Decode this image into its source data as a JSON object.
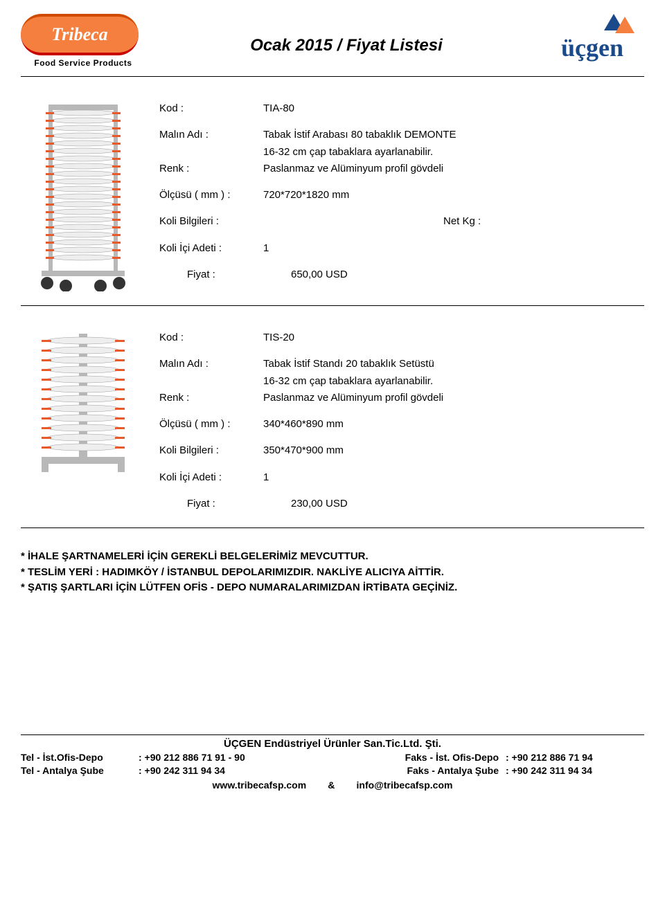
{
  "header": {
    "logo_left_text": "Tribeca",
    "logo_left_subtitle": "Food Service Products",
    "title": "Ocak 2015 / Fiyat Listesi",
    "logo_right_text": "üçgen"
  },
  "labels": {
    "kod": "Kod :",
    "malin_adi": "Malın Adı :",
    "renk": "Renk :",
    "olcusu": "Ölçüsü ( mm ) :",
    "koli_bilgileri": "Koli Bilgileri :",
    "koli_ici_adeti": "Koli İçi Adeti :",
    "fiyat": "Fiyat :",
    "net_kg": "Net Kg :"
  },
  "products": [
    {
      "kod": "TIA-80",
      "malin_adi_line1": "Tabak İstif Arabası 80 tabaklık DEMONTE",
      "malin_adi_line2": "16-32 cm çap tabaklara ayarlanabilir.",
      "renk": "Paslanmaz ve Alüminyum profil gövdeli",
      "olcusu": "720*720*1820 mm",
      "koli_bilgileri": "",
      "koli_ici_adeti": "1",
      "fiyat": "650,00 USD",
      "show_netkg": true
    },
    {
      "kod": "TIS-20",
      "malin_adi_line1": "Tabak İstif Standı 20 tabaklık Setüstü",
      "malin_adi_line2": "16-32 cm çap tabaklara ayarlanabilir.",
      "renk": "Paslanmaz ve Alüminyum profil gövdeli",
      "olcusu": "340*460*890 mm",
      "koli_bilgileri": "350*470*900 mm",
      "koli_ici_adeti": "1",
      "fiyat": "230,00 USD",
      "show_netkg": false
    }
  ],
  "notes": [
    "* İHALE ŞARTNAMELERİ İÇİN GEREKLİ BELGELERİMİZ MEVCUTTUR.",
    "* TESLİM YERİ : HADIMKÖY / İSTANBUL  DEPOLARIMIZDIR. NAKLİYE ALICIYA AİTTİR.",
    "* ŞATIŞ ŞARTLARI İÇİN LÜTFEN OFİS - DEPO NUMARALARIMIZDAN İRTİBATA GEÇİNİZ."
  ],
  "footer": {
    "company": "ÜÇGEN Endüstriyel Ürünler San.Tic.Ltd. Şti.",
    "rows": [
      {
        "l1": "Tel - İst.Ofis-Depo",
        "l2": ": +90 212 886 71 91 - 90",
        "r1": "Faks - İst. Ofis-Depo",
        "r2": ": +90 212 886 71 94"
      },
      {
        "l1": "Tel - Antalya Şube",
        "l2": ": +90 242 311 94 34",
        "r1": "Faks - Antalya Şube",
        "r2": ": +90 242 311 94 34"
      }
    ],
    "web_left": "www.tribecafsp.com",
    "web_sep": "&",
    "web_right": "info@tribecafsp.com"
  },
  "colors": {
    "tribeca_bg": "#f47f3f",
    "ucgen_blue": "#1a4a8a",
    "plate_orange": "#e85a2a",
    "steel": "#b8b8b8"
  }
}
